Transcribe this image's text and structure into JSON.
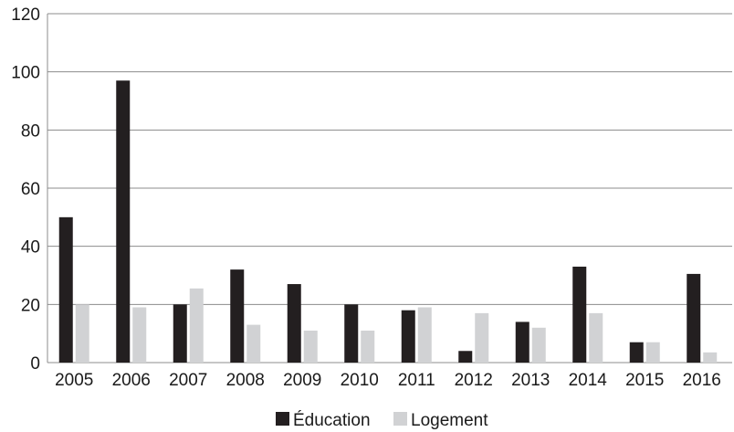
{
  "chart_data": {
    "type": "bar",
    "categories": [
      "2005",
      "2006",
      "2007",
      "2008",
      "2009",
      "2010",
      "2011",
      "2012",
      "2013",
      "2014",
      "2015",
      "2016"
    ],
    "series": [
      {
        "name": "Éducation",
        "color": "#231f20",
        "values": [
          50,
          97,
          20,
          32,
          27,
          20,
          18,
          4,
          14,
          33,
          7,
          30.5
        ]
      },
      {
        "name": "Logement",
        "color": "#d1d2d4",
        "values": [
          20,
          19,
          25.5,
          13,
          11,
          11,
          19,
          17,
          12,
          17,
          7,
          3.5
        ]
      }
    ],
    "ylim": [
      0,
      120
    ],
    "yticks": [
      0,
      20,
      40,
      60,
      80,
      100,
      120
    ],
    "ytick_labels": [
      "0",
      "20",
      "40",
      "60",
      "80",
      "100",
      "120"
    ],
    "grid": "horizontal",
    "grid_color": "#8c8c8c",
    "legend_position": "bottom-center",
    "title": "",
    "xlabel": "",
    "ylabel": ""
  }
}
